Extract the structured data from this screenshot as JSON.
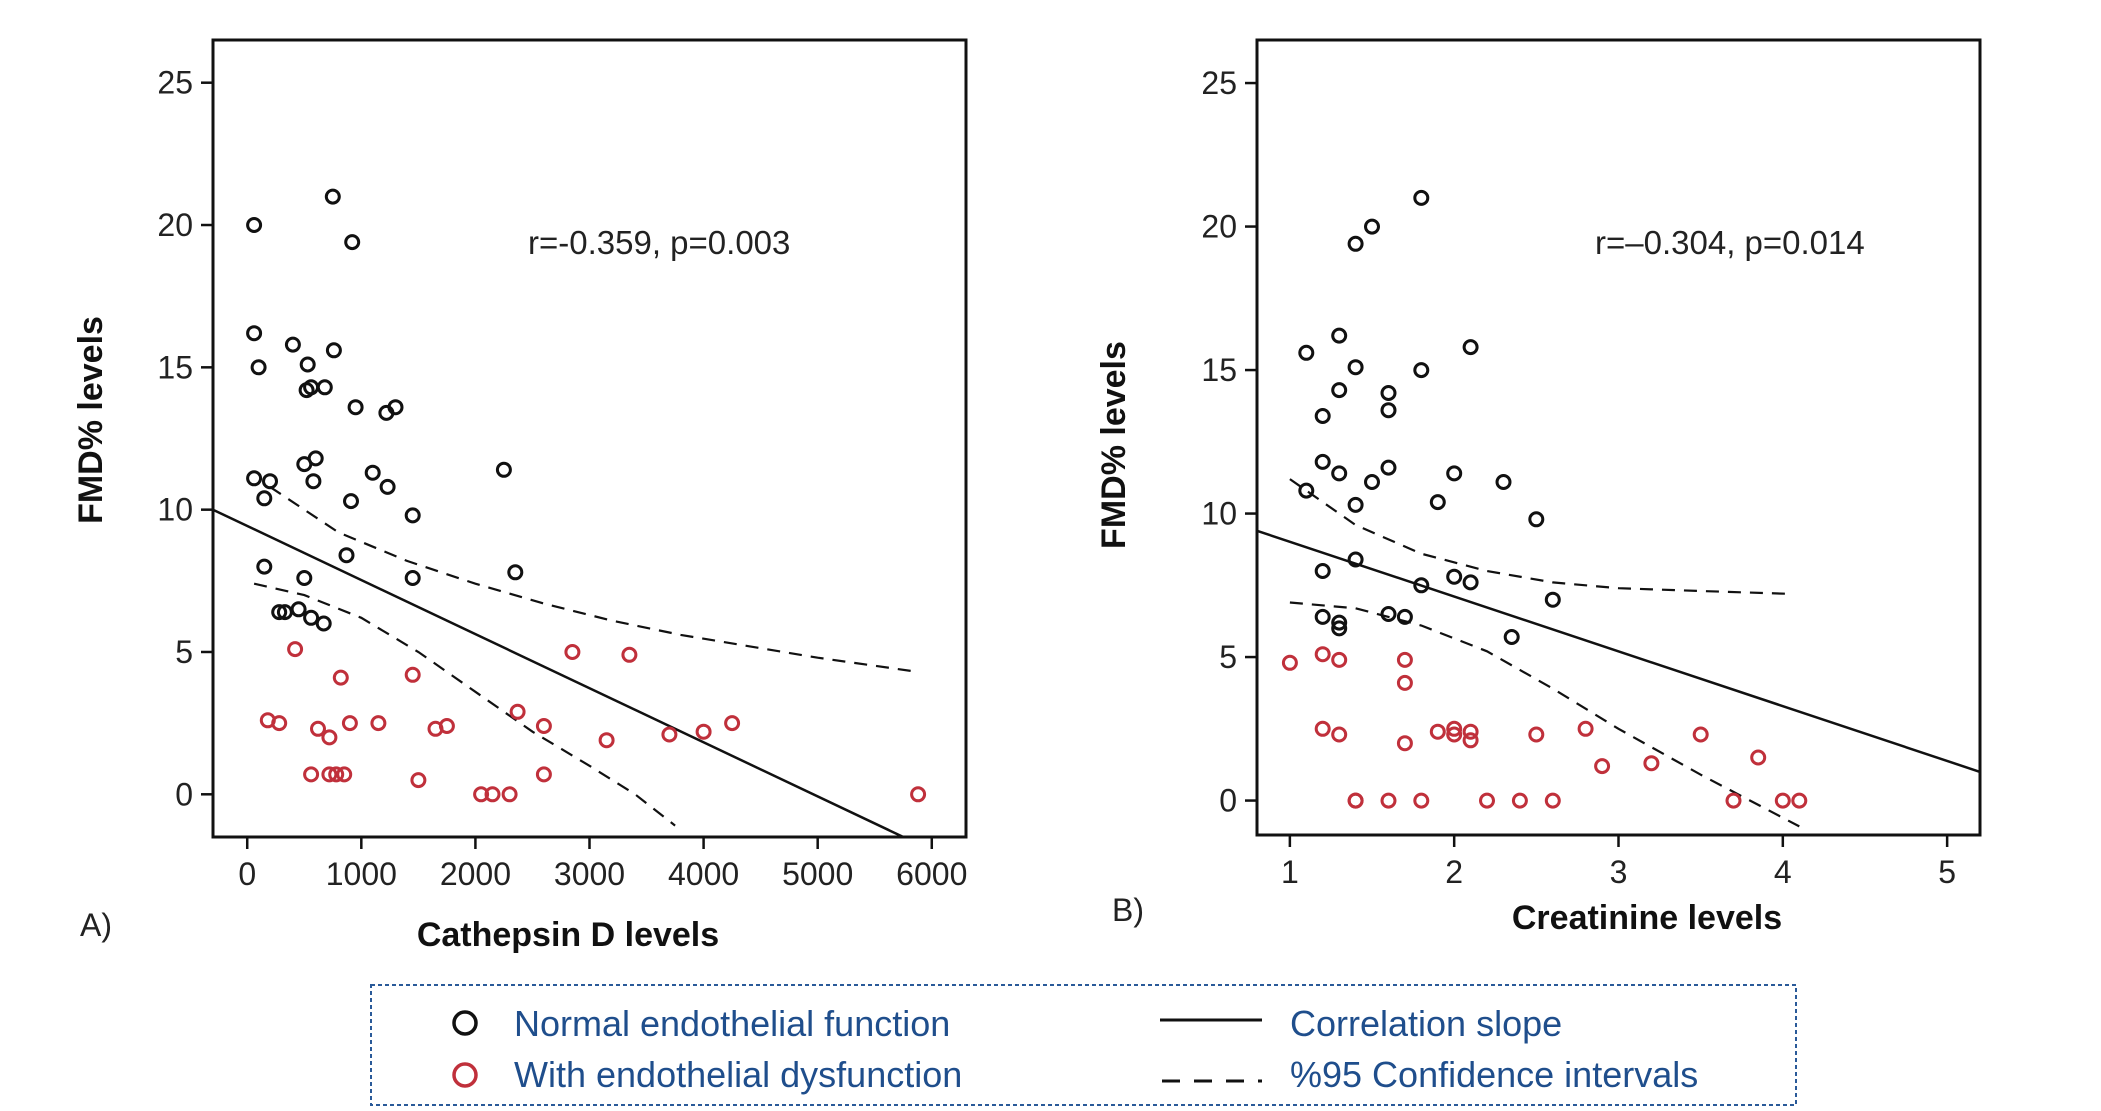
{
  "colors": {
    "normal": "#111111",
    "dysfunction": "#c0303b",
    "legend_text": "#1f4e8c",
    "legend_border": "#2a5a99",
    "frame": "#111111"
  },
  "legend": {
    "normal_label": "Normal endothelial function",
    "dysfunction_label": "With endothelial dysfunction",
    "slope_label": "Correlation slope",
    "ci_label": "%95 Confidence intervals"
  },
  "chart_data": [
    {
      "type": "scatter",
      "panel_label": "A)",
      "xlabel": "Cathepsin D levels",
      "ylabel": "FMD% levels",
      "annotation": "r=-0.359, p=0.003",
      "xlim": [
        -300,
        6300
      ],
      "ylim": [
        -1.5,
        26.5
      ],
      "xticks": [
        0,
        1000,
        2000,
        3000,
        4000,
        5000,
        6000
      ],
      "yticks": [
        0,
        5,
        10,
        15,
        20,
        25
      ],
      "series": [
        {
          "name": "Normal endothelial function",
          "color_key": "normal",
          "points": [
            [
              60,
              20
            ],
            [
              60,
              16.2
            ],
            [
              100,
              15
            ],
            [
              60,
              11.1
            ],
            [
              150,
              10.4
            ],
            [
              200,
              11
            ],
            [
              150,
              8
            ],
            [
              280,
              6.4
            ],
            [
              330,
              6.4
            ],
            [
              400,
              15.8
            ],
            [
              450,
              6.5
            ],
            [
              500,
              7.6
            ],
            [
              530,
              15.1
            ],
            [
              520,
              14.2
            ],
            [
              560,
              14.3
            ],
            [
              500,
              11.6
            ],
            [
              600,
              11.8
            ],
            [
              580,
              11
            ],
            [
              560,
              6.2
            ],
            [
              670,
              6
            ],
            [
              680,
              14.3
            ],
            [
              750,
              21
            ],
            [
              760,
              15.6
            ],
            [
              870,
              8.4
            ],
            [
              920,
              19.4
            ],
            [
              910,
              10.3
            ],
            [
              950,
              13.6
            ],
            [
              1100,
              11.3
            ],
            [
              1220,
              13.4
            ],
            [
              1230,
              10.8
            ],
            [
              1300,
              13.6
            ],
            [
              1450,
              9.8
            ],
            [
              1450,
              7.6
            ],
            [
              2250,
              11.4
            ],
            [
              2350,
              7.8
            ]
          ]
        },
        {
          "name": "With endothelial dysfunction",
          "color_key": "dysfunction",
          "points": [
            [
              420,
              5.1
            ],
            [
              820,
              4.1
            ],
            [
              180,
              2.6
            ],
            [
              280,
              2.5
            ],
            [
              620,
              2.3
            ],
            [
              720,
              2
            ],
            [
              900,
              2.5
            ],
            [
              1150,
              2.5
            ],
            [
              560,
              0.7
            ],
            [
              720,
              0.7
            ],
            [
              780,
              0.7
            ],
            [
              850,
              0.7
            ],
            [
              1450,
              4.2
            ],
            [
              1500,
              0.5
            ],
            [
              1650,
              2.3
            ],
            [
              1750,
              2.4
            ],
            [
              2050,
              0
            ],
            [
              2150,
              0
            ],
            [
              2300,
              0
            ],
            [
              2370,
              2.9
            ],
            [
              2600,
              2.4
            ],
            [
              2600,
              0.7
            ],
            [
              2850,
              5
            ],
            [
              3150,
              1.9
            ],
            [
              3350,
              4.9
            ],
            [
              3700,
              2.1
            ],
            [
              4000,
              2.2
            ],
            [
              4250,
              2.5
            ],
            [
              5880,
              0
            ]
          ]
        }
      ],
      "slope_line": [
        [
          -300,
          10
        ],
        [
          5750,
          -1.5
        ]
      ],
      "ci_upper": [
        [
          200,
          10.8
        ],
        [
          800,
          9.2
        ],
        [
          1400,
          8.2
        ],
        [
          2000,
          7.4
        ],
        [
          2600,
          6.7
        ],
        [
          3200,
          6.1
        ],
        [
          3800,
          5.6
        ],
        [
          4400,
          5.2
        ],
        [
          5000,
          4.8
        ],
        [
          5880,
          4.3
        ]
      ],
      "ci_lower": [
        [
          60,
          7.4
        ],
        [
          500,
          7
        ],
        [
          1000,
          6.2
        ],
        [
          1500,
          5
        ],
        [
          2000,
          3.6
        ],
        [
          2500,
          2.2
        ],
        [
          3000,
          1
        ],
        [
          3400,
          0
        ],
        [
          3750,
          -1.1
        ]
      ]
    },
    {
      "type": "scatter",
      "panel_label": "B)",
      "xlabel": "Creatinine levels",
      "ylabel": "FMD% levels",
      "annotation": "r=–0.304, p=0.014",
      "xlim": [
        0.8,
        5.2
      ],
      "ylim": [
        -1.2,
        26.5
      ],
      "xticks": [
        1,
        2,
        3,
        4,
        5
      ],
      "yticks": [
        0,
        5,
        10,
        15,
        20,
        25
      ],
      "series": [
        {
          "name": "Normal endothelial function",
          "color_key": "normal",
          "points": [
            [
              1.1,
              15.6
            ],
            [
              1.1,
              10.8
            ],
            [
              1.2,
              13.4
            ],
            [
              1.2,
              11.8
            ],
            [
              1.2,
              8
            ],
            [
              1.2,
              6.4
            ],
            [
              1.3,
              16.2
            ],
            [
              1.3,
              14.3
            ],
            [
              1.3,
              11.4
            ],
            [
              1.3,
              6.2
            ],
            [
              1.3,
              6
            ],
            [
              1.4,
              19.4
            ],
            [
              1.4,
              15.1
            ],
            [
              1.4,
              10.3
            ],
            [
              1.4,
              8.4
            ],
            [
              1.5,
              20
            ],
            [
              1.5,
              11.1
            ],
            [
              1.6,
              14.2
            ],
            [
              1.6,
              13.6
            ],
            [
              1.6,
              11.6
            ],
            [
              1.6,
              6.5
            ],
            [
              1.7,
              6.4
            ],
            [
              1.8,
              21
            ],
            [
              1.8,
              15
            ],
            [
              1.8,
              7.5
            ],
            [
              1.9,
              10.4
            ],
            [
              2.0,
              11.4
            ],
            [
              2.0,
              7.8
            ],
            [
              2.1,
              15.8
            ],
            [
              2.1,
              7.6
            ],
            [
              2.3,
              11.1
            ],
            [
              2.35,
              5.7
            ],
            [
              2.5,
              9.8
            ],
            [
              2.6,
              7
            ]
          ]
        },
        {
          "name": "With endothelial dysfunction",
          "color_key": "dysfunction",
          "points": [
            [
              1.0,
              4.8
            ],
            [
              1.2,
              5.1
            ],
            [
              1.3,
              4.9
            ],
            [
              1.2,
              2.5
            ],
            [
              1.3,
              2.3
            ],
            [
              1.4,
              0
            ],
            [
              1.4,
              0
            ],
            [
              1.6,
              0
            ],
            [
              1.7,
              4.9
            ],
            [
              1.7,
              4.1
            ],
            [
              1.7,
              2
            ],
            [
              1.8,
              0
            ],
            [
              1.9,
              2.4
            ],
            [
              2.0,
              2.5
            ],
            [
              2.0,
              2.3
            ],
            [
              2.1,
              2.4
            ],
            [
              2.1,
              2.1
            ],
            [
              2.2,
              0
            ],
            [
              2.4,
              0
            ],
            [
              2.5,
              2.3
            ],
            [
              2.6,
              0
            ],
            [
              2.8,
              2.5
            ],
            [
              2.9,
              1.2
            ],
            [
              3.2,
              1.3
            ],
            [
              3.5,
              2.3
            ],
            [
              3.7,
              0
            ],
            [
              3.85,
              1.5
            ],
            [
              4.0,
              0
            ],
            [
              4.1,
              0
            ]
          ]
        }
      ],
      "slope_line": [
        [
          0.8,
          9.4
        ],
        [
          5.2,
          1
        ]
      ],
      "ci_upper": [
        [
          1.0,
          11.2
        ],
        [
          1.4,
          9.6
        ],
        [
          1.8,
          8.6
        ],
        [
          2.2,
          8
        ],
        [
          2.6,
          7.6
        ],
        [
          3.0,
          7.4
        ],
        [
          3.5,
          7.3
        ],
        [
          4.05,
          7.2
        ]
      ],
      "ci_lower": [
        [
          1.0,
          6.9
        ],
        [
          1.4,
          6.7
        ],
        [
          1.8,
          6.1
        ],
        [
          2.2,
          5.2
        ],
        [
          2.6,
          3.9
        ],
        [
          3.0,
          2.5
        ],
        [
          3.5,
          0.9
        ],
        [
          4.1,
          -0.9
        ]
      ]
    }
  ]
}
